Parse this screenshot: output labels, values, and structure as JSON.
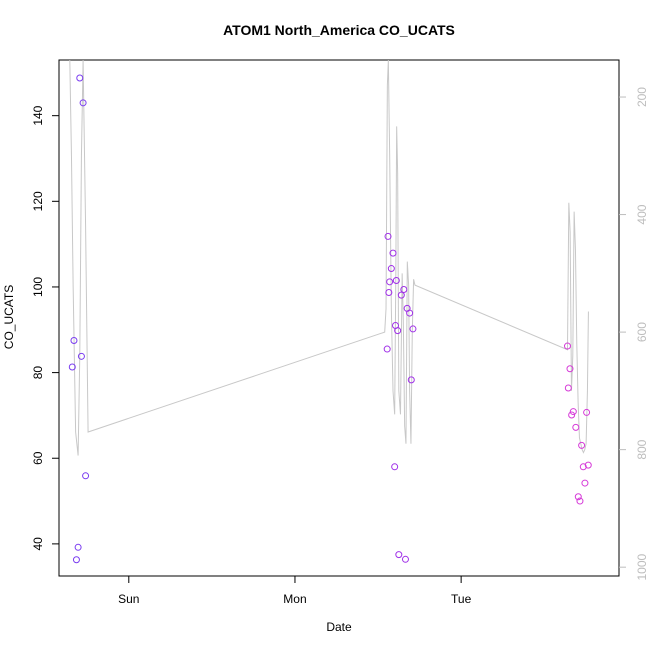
{
  "chart_data": {
    "type": "scatter",
    "title": "ATOM1 North_America CO_UCATS",
    "xlabel": "Date",
    "ylabel": "CO_UCATS",
    "x_ticks": [
      {
        "label": "Sun",
        "value": 1.0
      },
      {
        "label": "Mon",
        "value": 2.0
      },
      {
        "label": "Tue",
        "value": 3.0
      }
    ],
    "xlim": [
      0.58,
      3.95
    ],
    "ylim": [
      32.5,
      153
    ],
    "y_ticks": [
      40,
      60,
      80,
      100,
      120,
      140
    ],
    "right_axis": {
      "label": "",
      "ylim": [
        1015,
        137
      ],
      "ticks": [
        200,
        400,
        600,
        800,
        1000
      ],
      "color": "#bdbdbd"
    },
    "series": [
      {
        "name": "CO_UCATS",
        "type": "scatter",
        "marker": "open-circle",
        "points": [
          {
            "x": 0.66,
            "y": 81.3,
            "color": "#7a3cf0"
          },
          {
            "x": 0.67,
            "y": 87.5,
            "color": "#7a3cf0"
          },
          {
            "x": 0.685,
            "y": 36.3,
            "color": "#7a3cf0"
          },
          {
            "x": 0.695,
            "y": 39.2,
            "color": "#7a3cf0"
          },
          {
            "x": 0.705,
            "y": 148.8,
            "color": "#7a3cf0"
          },
          {
            "x": 0.715,
            "y": 83.8,
            "color": "#7a3cf0"
          },
          {
            "x": 0.725,
            "y": 143.0,
            "color": "#7a3cf0"
          },
          {
            "x": 0.74,
            "y": 55.9,
            "color": "#7a3cf0"
          },
          {
            "x": 2.555,
            "y": 85.5,
            "color": "#a030e8"
          },
          {
            "x": 2.56,
            "y": 111.8,
            "color": "#a030e8"
          },
          {
            "x": 2.565,
            "y": 98.7,
            "color": "#a030e8"
          },
          {
            "x": 2.57,
            "y": 101.2,
            "color": "#a030e8"
          },
          {
            "x": 2.58,
            "y": 104.3,
            "color": "#a030e8"
          },
          {
            "x": 2.59,
            "y": 107.9,
            "color": "#a030e8"
          },
          {
            "x": 2.6,
            "y": 58.0,
            "color": "#a030e8"
          },
          {
            "x": 2.605,
            "y": 91.0,
            "color": "#a030e8"
          },
          {
            "x": 2.61,
            "y": 101.5,
            "color": "#a030e8"
          },
          {
            "x": 2.618,
            "y": 89.8,
            "color": "#a030e8"
          },
          {
            "x": 2.625,
            "y": 37.5,
            "color": "#a030e8"
          },
          {
            "x": 2.64,
            "y": 98.1,
            "color": "#a030e8"
          },
          {
            "x": 2.655,
            "y": 99.4,
            "color": "#a030e8"
          },
          {
            "x": 2.665,
            "y": 36.4,
            "color": "#a030e8"
          },
          {
            "x": 2.675,
            "y": 95.0,
            "color": "#a030e8"
          },
          {
            "x": 2.69,
            "y": 93.9,
            "color": "#a030e8"
          },
          {
            "x": 2.7,
            "y": 78.3,
            "color": "#a030e8"
          },
          {
            "x": 2.71,
            "y": 90.2,
            "color": "#a030e8"
          },
          {
            "x": 3.64,
            "y": 86.2,
            "color": "#d63ad8"
          },
          {
            "x": 3.645,
            "y": 76.4,
            "color": "#d63ad8"
          },
          {
            "x": 3.655,
            "y": 80.9,
            "color": "#d63ad8"
          },
          {
            "x": 3.665,
            "y": 70.1,
            "color": "#d63ad8"
          },
          {
            "x": 3.675,
            "y": 70.9,
            "color": "#d63ad8"
          },
          {
            "x": 3.69,
            "y": 67.2,
            "color": "#d63ad8"
          },
          {
            "x": 3.705,
            "y": 51.0,
            "color": "#d63ad8"
          },
          {
            "x": 3.715,
            "y": 50.0,
            "color": "#d63ad8"
          },
          {
            "x": 3.725,
            "y": 63.0,
            "color": "#d63ad8"
          },
          {
            "x": 3.735,
            "y": 58.0,
            "color": "#d63ad8"
          },
          {
            "x": 3.745,
            "y": 54.2,
            "color": "#d63ad8"
          },
          {
            "x": 3.755,
            "y": 70.7,
            "color": "#d63ad8"
          },
          {
            "x": 3.765,
            "y": 58.4,
            "color": "#d63ad8"
          }
        ]
      },
      {
        "name": "Pressure",
        "type": "line",
        "axis": "right",
        "color": "#c8c8c8",
        "points": [
          [
            0.645,
            137
          ],
          [
            0.655,
            300
          ],
          [
            0.665,
            520
          ],
          [
            0.68,
            770
          ],
          [
            0.695,
            810
          ],
          [
            0.705,
            640
          ],
          [
            0.715,
            300
          ],
          [
            0.725,
            137
          ],
          [
            0.74,
            420
          ],
          [
            0.755,
            770
          ],
          [
            2.54,
            600
          ],
          [
            2.548,
            560
          ],
          [
            2.556,
            180
          ],
          [
            2.562,
            137
          ],
          [
            2.57,
            300
          ],
          [
            2.58,
            560
          ],
          [
            2.59,
            700
          ],
          [
            2.6,
            740
          ],
          [
            2.607,
            500
          ],
          [
            2.612,
            250
          ],
          [
            2.618,
            330
          ],
          [
            2.625,
            700
          ],
          [
            2.635,
            740
          ],
          [
            2.645,
            500
          ],
          [
            2.652,
            580
          ],
          [
            2.66,
            760
          ],
          [
            2.668,
            790
          ],
          [
            2.676,
            480
          ],
          [
            2.684,
            520
          ],
          [
            2.69,
            700
          ],
          [
            2.698,
            790
          ],
          [
            2.706,
            600
          ],
          [
            2.714,
            510
          ],
          [
            2.722,
            520
          ],
          [
            3.64,
            630
          ],
          [
            3.648,
            380
          ],
          [
            3.656,
            430
          ],
          [
            3.664,
            700
          ],
          [
            3.672,
            640
          ],
          [
            3.68,
            395
          ],
          [
            3.688,
            460
          ],
          [
            3.696,
            620
          ],
          [
            3.704,
            720
          ],
          [
            3.712,
            780
          ],
          [
            3.72,
            790
          ],
          [
            3.728,
            800
          ],
          [
            3.736,
            805
          ],
          [
            3.744,
            800
          ],
          [
            3.752,
            790
          ],
          [
            3.76,
            700
          ],
          [
            3.766,
            565
          ]
        ]
      }
    ]
  }
}
